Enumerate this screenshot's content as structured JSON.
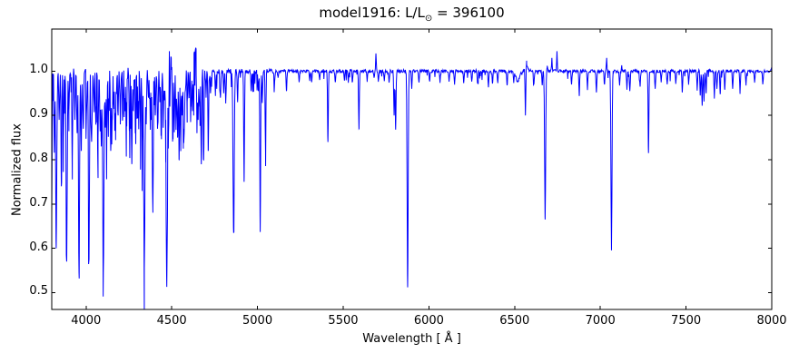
{
  "title": {
    "prefix": "model1916: L/L",
    "sub": "⊙",
    "suffix": " = 396100"
  },
  "axes": {
    "xlabel": "Wavelength [ Å ]",
    "ylabel": "Normalized flux"
  },
  "chart_data": {
    "type": "line",
    "title": "model1916: L/L⊙ = 396100",
    "xlabel": "Wavelength [ Å ]",
    "ylabel": "Normalized flux",
    "xlim": [
      3800,
      8000
    ],
    "ylim": [
      0.462,
      1.095
    ],
    "x_ticks": [
      "4000",
      "4500",
      "5000",
      "5500",
      "6000",
      "6500",
      "7000",
      "7500",
      "8000"
    ],
    "y_ticks": [
      "1.0",
      "0.9",
      "0.8",
      "0.7",
      "0.6",
      "0.5"
    ],
    "line_color": "#0000ff",
    "frame_color": "#000000",
    "continuum_flux": 1.0,
    "absorption_lines": [
      [
        3797,
        0.635,
        3
      ],
      [
        3815,
        0.82
      ],
      [
        3826,
        0.6,
        3
      ],
      [
        3843,
        0.89
      ],
      [
        3856,
        0.74
      ],
      [
        3868,
        0.85
      ],
      [
        3887,
        0.57,
        3
      ],
      [
        3900,
        0.91
      ],
      [
        3920,
        0.8
      ],
      [
        3935,
        0.89
      ],
      [
        3948,
        0.86
      ],
      [
        3959,
        0.545,
        3
      ],
      [
        3972,
        0.82
      ],
      [
        3984,
        0.87
      ],
      [
        4003,
        0.91
      ],
      [
        4017,
        0.573,
        3
      ],
      [
        4035,
        0.89
      ],
      [
        4047,
        0.92
      ],
      [
        4058,
        0.92
      ],
      [
        4070,
        0.85
      ],
      [
        4082,
        0.87
      ],
      [
        4089,
        0.83
      ],
      [
        4101,
        0.55,
        3.5
      ],
      [
        4113,
        0.88
      ],
      [
        4121,
        0.85
      ],
      [
        4131,
        0.91
      ],
      [
        4144,
        0.82
      ],
      [
        4153,
        0.89
      ],
      [
        4163,
        0.92
      ],
      [
        4172,
        0.87
      ],
      [
        4187,
        0.9
      ],
      [
        4200,
        0.88
      ],
      [
        4215,
        0.93
      ],
      [
        4227,
        0.91
      ],
      [
        4236,
        0.93
      ],
      [
        4253,
        0.89
      ],
      [
        4267,
        0.79
      ],
      [
        4276,
        0.91
      ],
      [
        4288,
        0.93
      ],
      [
        4303,
        0.9
      ],
      [
        4317,
        0.88
      ],
      [
        4328,
        0.84
      ],
      [
        4340,
        0.555,
        3.5
      ],
      [
        4351,
        0.88
      ],
      [
        4364,
        0.94
      ],
      [
        4380,
        0.89
      ],
      [
        4390,
        0.69
      ],
      [
        4404,
        0.9
      ],
      [
        4417,
        0.87
      ],
      [
        4430,
        0.93
      ],
      [
        4438,
        0.91
      ],
      [
        4453,
        0.94
      ],
      [
        4465,
        0.89
      ],
      [
        4471,
        0.513,
        3
      ],
      [
        4481,
        0.86
      ],
      [
        4489,
        0.92
      ],
      [
        4505,
        0.91
      ],
      [
        4515,
        0.87
      ],
      [
        4525,
        0.875
      ],
      [
        4534,
        0.85
      ],
      [
        4543,
        0.8
      ],
      [
        4552,
        0.843
      ],
      [
        4560,
        0.9
      ],
      [
        4568,
        0.87
      ],
      [
        4575,
        0.91
      ],
      [
        4590,
        0.93
      ],
      [
        4601,
        0.94
      ],
      [
        4613,
        0.92
      ],
      [
        4621,
        0.91
      ],
      [
        4628,
        0.9
      ],
      [
        4647,
        0.86
      ],
      [
        4654,
        0.89
      ],
      [
        4662,
        0.92
      ],
      [
        4672,
        0.8
      ],
      [
        4686,
        0.8
      ],
      [
        4700,
        0.94
      ],
      [
        4713,
        0.82
      ],
      [
        4726,
        0.95
      ],
      [
        4755,
        0.95
      ],
      [
        4784,
        0.94
      ],
      [
        4803,
        0.95
      ],
      [
        4815,
        0.93
      ],
      [
        4861,
        0.635,
        3.5
      ],
      [
        4884,
        0.93
      ],
      [
        4922,
        0.75
      ],
      [
        4964,
        0.96
      ],
      [
        5005,
        0.955
      ],
      [
        5016,
        0.637
      ],
      [
        5028,
        0.928
      ],
      [
        5047,
        0.82
      ],
      [
        5100,
        0.975
      ],
      [
        5120,
        0.985
      ],
      [
        5169,
        0.955
      ],
      [
        5243,
        0.975
      ],
      [
        5305,
        0.98
      ],
      [
        5316,
        0.975
      ],
      [
        5363,
        0.98
      ],
      [
        5411,
        0.84
      ],
      [
        5454,
        0.975
      ],
      [
        5507,
        0.98
      ],
      [
        5530,
        0.975
      ],
      [
        5555,
        0.98
      ],
      [
        5592,
        0.87
      ],
      [
        5640,
        0.978
      ],
      [
        5680,
        0.985
      ],
      [
        5705,
        0.977
      ],
      [
        5740,
        0.978
      ],
      [
        5768,
        0.975
      ],
      [
        5797,
        0.9
      ],
      [
        5806,
        0.868
      ],
      [
        5876,
        0.512,
        3
      ],
      [
        5900,
        0.96
      ],
      [
        5942,
        0.975
      ],
      [
        6004,
        0.978
      ],
      [
        6065,
        0.975
      ],
      [
        6118,
        0.978
      ],
      [
        6150,
        0.972
      ],
      [
        6203,
        0.973
      ],
      [
        6250,
        0.977
      ],
      [
        6284,
        0.972
      ],
      [
        6347,
        0.965
      ],
      [
        6371,
        0.972
      ],
      [
        6402,
        0.973
      ],
      [
        6456,
        0.968
      ],
      [
        6495,
        0.975
      ],
      [
        6563,
        0.9
      ],
      [
        6613,
        0.972
      ],
      [
        6661,
        0.968
      ],
      [
        6678,
        0.665,
        3
      ],
      [
        6832,
        0.97
      ],
      [
        6877,
        0.945
      ],
      [
        6925,
        0.958
      ],
      [
        6977,
        0.952
      ],
      [
        7024,
        0.97
      ],
      [
        7065,
        0.597,
        3
      ],
      [
        7112,
        0.97
      ],
      [
        7155,
        0.958
      ],
      [
        7172,
        0.955
      ],
      [
        7232,
        0.965
      ],
      [
        7281,
        0.815
      ],
      [
        7320,
        0.96
      ],
      [
        7355,
        0.975
      ],
      [
        7390,
        0.97
      ],
      [
        7440,
        0.972
      ],
      [
        7478,
        0.952
      ],
      [
        7515,
        0.972
      ],
      [
        7565,
        0.958
      ],
      [
        7583,
        0.945
      ],
      [
        7594,
        0.922
      ],
      [
        7605,
        0.935
      ],
      [
        7617,
        0.95
      ],
      [
        7665,
        0.938
      ],
      [
        7680,
        0.96
      ],
      [
        7699,
        0.948
      ],
      [
        7726,
        0.958
      ],
      [
        7772,
        0.96
      ],
      [
        7815,
        0.952
      ],
      [
        7850,
        0.97
      ],
      [
        7900,
        0.975
      ],
      [
        7948,
        0.972
      ]
    ],
    "emission_lines": [
      [
        4486,
        1.045
      ],
      [
        4497,
        1.03
      ],
      [
        4630,
        1.04
      ],
      [
        4642,
        1.05
      ],
      [
        5691,
        1.04
      ],
      [
        6570,
        1.015
      ],
      [
        6690,
        1.012
      ],
      [
        6717,
        1.028
      ],
      [
        6747,
        1.045
      ],
      [
        7037,
        1.03
      ],
      [
        7125,
        1.012
      ],
      [
        7998,
        1.008
      ]
    ],
    "broad_features": [
      {
        "center": 4637,
        "amp": 0.033,
        "sigma": 13
      },
      {
        "center": 4490,
        "amp": 0.015,
        "sigma": 7
      },
      {
        "center": 6518,
        "amp": -0.022,
        "sigma": 11
      },
      {
        "center": 6568,
        "amp": 0.008,
        "sigma": 10
      }
    ],
    "noise": {
      "seed": 1916,
      "sample_step_A": 2.5,
      "bands": [
        {
          "from": 3800,
          "to": 4000,
          "jitter": 0.009,
          "dip_p": 0.3,
          "dip_max": 0.12
        },
        {
          "from": 4000,
          "to": 4560,
          "jitter": 0.01,
          "dip_p": 0.5,
          "dip_max": 0.13
        },
        {
          "from": 4560,
          "to": 4700,
          "jitter": 0.013,
          "dip_p": 0.45,
          "dip_max": 0.1
        },
        {
          "from": 4700,
          "to": 5100,
          "jitter": 0.005,
          "dip_p": 0.12,
          "dip_max": 0.05
        },
        {
          "from": 5100,
          "to": 8000,
          "jitter": 0.0035,
          "dip_p": 0.05,
          "dip_max": 0.022
        }
      ]
    }
  }
}
